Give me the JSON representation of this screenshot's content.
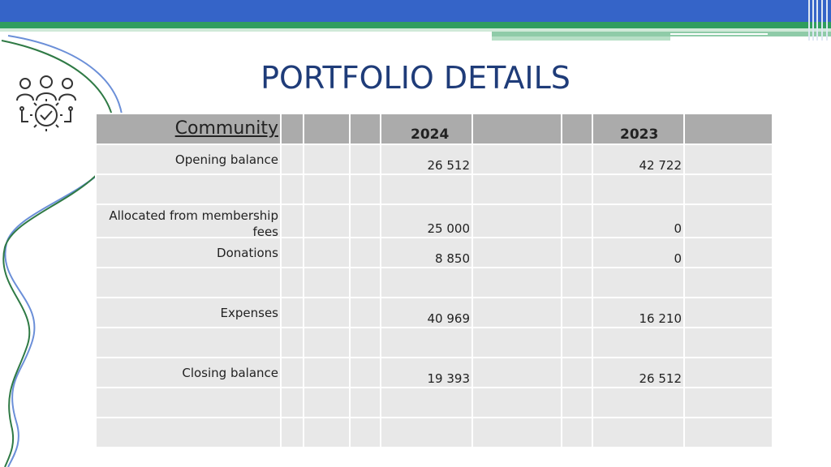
{
  "slide": {
    "title": "PORTFOLIO DETAILS",
    "icon": "team-settings-check-icon"
  },
  "table": {
    "header": {
      "label": "Community",
      "year1": "2024",
      "year2": "2023"
    },
    "rows": [
      {
        "label": "Opening balance",
        "v2024": "26 512",
        "v2023": "42 722"
      },
      {
        "label": "Allocated from membership fees",
        "v2024": "25 000",
        "v2023": "0"
      },
      {
        "label": "Donations",
        "v2024": "8 850",
        "v2023": "0"
      },
      {
        "label": "Expenses",
        "v2024": "40 969",
        "v2023": "16 210"
      },
      {
        "label": "Closing balance",
        "v2024": "19 393",
        "v2023": "26 512"
      }
    ]
  },
  "colors": {
    "top_bar": "#3564c8",
    "accent_green": "#2f9d5e",
    "title": "#1f3c79",
    "header_row": "#ababab",
    "body_cell": "#e8e8e8"
  }
}
